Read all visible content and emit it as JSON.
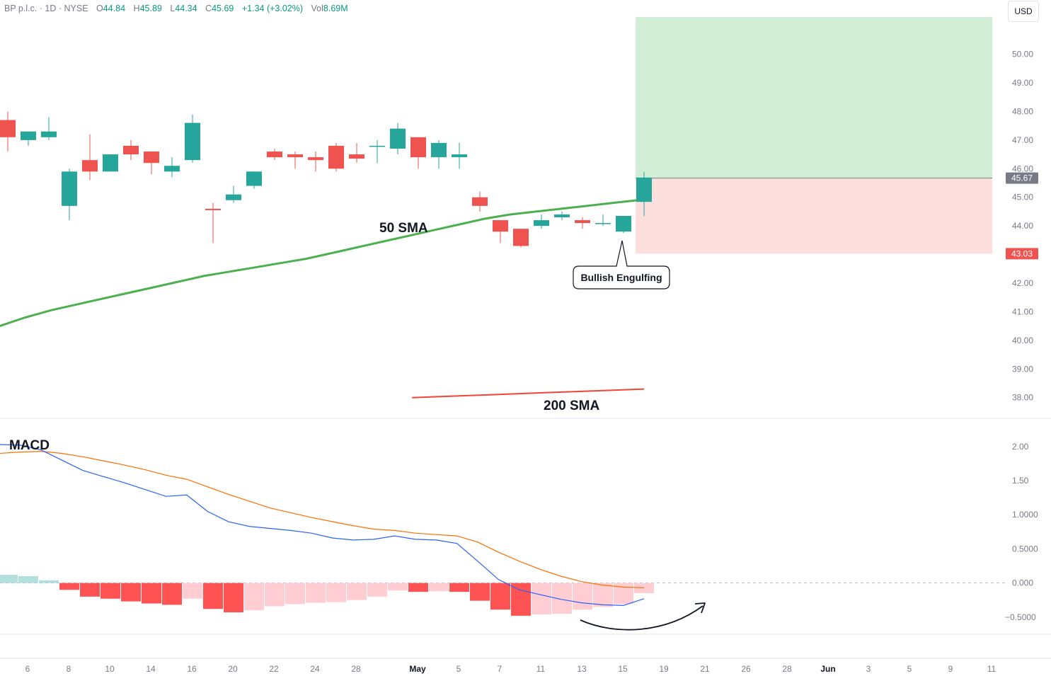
{
  "header": {
    "symbol": "BP p.l.c. · 1D · NYSE",
    "o_label": "O",
    "o_value": "44.84",
    "h_label": "H",
    "h_value": "45.89",
    "l_label": "L",
    "l_value": "44.34",
    "c_label": "C",
    "c_value": "45.69",
    "change": "+1.34 (+3.02%)",
    "vol_label": "Vol",
    "vol_value": "8.69M"
  },
  "currency": "USD",
  "colors": {
    "up": "#26a69a",
    "down": "#ef5350",
    "sma50": "#4caf50",
    "sma200": "#f44336",
    "macd": "#2962ff",
    "signal": "#ff6d00",
    "profit_zone": "#d3eed6",
    "loss_zone": "#fde0de"
  },
  "chart_data": [
    {
      "type": "candlestick",
      "y_ticks": [
        "50.00",
        "49.00",
        "48.00",
        "47.00",
        "46.00",
        "45.00",
        "44.00",
        "42.00",
        "41.00",
        "40.00",
        "39.00",
        "38.00"
      ],
      "ylim": [
        37.3,
        51.4
      ],
      "x_ticks": [
        "6",
        "8",
        "10",
        "14",
        "16",
        "20",
        "22",
        "24",
        "28",
        "May",
        "5",
        "7",
        "11",
        "13",
        "15",
        "19",
        "21",
        "26",
        "28",
        "Jun",
        "3",
        "5",
        "9",
        "11"
      ],
      "candles": [
        {
          "o": 47.7,
          "h": 48.0,
          "l": 46.6,
          "c": 47.1
        },
        {
          "o": 47.0,
          "h": 47.3,
          "l": 46.8,
          "c": 47.3
        },
        {
          "o": 47.1,
          "h": 47.8,
          "l": 47.0,
          "c": 47.3
        },
        {
          "o": 44.7,
          "h": 46.0,
          "l": 44.2,
          "c": 45.9
        },
        {
          "o": 46.3,
          "h": 47.2,
          "l": 45.6,
          "c": 45.9
        },
        {
          "o": 45.9,
          "h": 46.5,
          "l": 45.9,
          "c": 46.5
        },
        {
          "o": 46.8,
          "h": 47.0,
          "l": 46.3,
          "c": 46.5
        },
        {
          "o": 46.6,
          "h": 46.6,
          "l": 45.8,
          "c": 46.2
        },
        {
          "o": 45.9,
          "h": 46.4,
          "l": 45.7,
          "c": 46.1
        },
        {
          "o": 46.3,
          "h": 47.9,
          "l": 46.2,
          "c": 47.6
        },
        {
          "o": 44.6,
          "h": 44.8,
          "l": 43.4,
          "c": 44.55
        },
        {
          "o": 44.9,
          "h": 45.4,
          "l": 44.8,
          "c": 45.1
        },
        {
          "o": 45.4,
          "h": 45.9,
          "l": 45.3,
          "c": 45.9
        },
        {
          "o": 46.6,
          "h": 46.7,
          "l": 46.3,
          "c": 46.4
        },
        {
          "o": 46.5,
          "h": 46.6,
          "l": 46.0,
          "c": 46.4
        },
        {
          "o": 46.4,
          "h": 46.6,
          "l": 45.9,
          "c": 46.3
        },
        {
          "o": 46.8,
          "h": 46.9,
          "l": 45.9,
          "c": 46.0
        },
        {
          "o": 46.5,
          "h": 46.9,
          "l": 46.2,
          "c": 46.35
        },
        {
          "o": 46.8,
          "h": 47.0,
          "l": 46.2,
          "c": 46.8
        },
        {
          "o": 46.7,
          "h": 47.6,
          "l": 46.5,
          "c": 47.4
        },
        {
          "o": 47.1,
          "h": 47.1,
          "l": 46.0,
          "c": 46.4
        },
        {
          "o": 46.4,
          "h": 47.0,
          "l": 46.0,
          "c": 46.9
        },
        {
          "o": 46.4,
          "h": 46.9,
          "l": 46.0,
          "c": 46.5
        },
        {
          "o": 45.0,
          "h": 45.2,
          "l": 44.5,
          "c": 44.7
        },
        {
          "o": 44.2,
          "h": 44.2,
          "l": 43.4,
          "c": 43.8
        },
        {
          "o": 43.9,
          "h": 43.9,
          "l": 43.25,
          "c": 43.3
        },
        {
          "o": 44.0,
          "h": 44.4,
          "l": 43.9,
          "c": 44.2
        },
        {
          "o": 44.3,
          "h": 44.5,
          "l": 44.2,
          "c": 44.4
        },
        {
          "o": 44.2,
          "h": 44.3,
          "l": 43.9,
          "c": 44.1
        },
        {
          "o": 44.1,
          "h": 44.4,
          "l": 44.0,
          "c": 44.1
        },
        {
          "o": 43.8,
          "h": 44.35,
          "l": 43.75,
          "c": 44.35
        },
        {
          "o": 44.84,
          "h": 45.89,
          "l": 44.34,
          "c": 45.69
        }
      ],
      "sma50": [
        40.5,
        40.8,
        41.05,
        41.25,
        41.45,
        41.65,
        41.85,
        42.05,
        42.25,
        42.4,
        42.55,
        42.7,
        42.85,
        43.05,
        43.25,
        43.45,
        43.65,
        43.85,
        44.05,
        44.25,
        44.4,
        44.5,
        44.6,
        44.7,
        44.8,
        44.9
      ],
      "sma200": [
        38.0,
        38.1,
        38.2,
        38.3
      ],
      "annotations": {
        "sma50_label": "50 SMA",
        "sma200_label": "200 SMA",
        "pattern_label": "Bullish Engulfing"
      },
      "position": {
        "entry": 45.67,
        "target": 51.3,
        "stop": 43.03
      },
      "price_labels": {
        "current": "45.67",
        "stop": "43.03"
      }
    },
    {
      "type": "macd",
      "title": "MACD",
      "y_ticks": [
        "2.00",
        "1.50",
        "1.0000",
        "0.5000",
        "0.000",
        "−0.5000"
      ],
      "ylim": [
        -0.72,
        2.32
      ],
      "macd": [
        2.03,
        2.02,
        1.95,
        1.8,
        1.65,
        1.56,
        1.47,
        1.37,
        1.27,
        1.29,
        1.05,
        0.9,
        0.83,
        0.8,
        0.77,
        0.73,
        0.66,
        0.63,
        0.64,
        0.69,
        0.64,
        0.63,
        0.58,
        0.32,
        0.05,
        -0.1,
        -0.17,
        -0.24,
        -0.29,
        -0.32,
        -0.33,
        -0.23
      ],
      "signal": [
        1.9,
        1.92,
        1.93,
        1.9,
        1.85,
        1.79,
        1.73,
        1.66,
        1.58,
        1.52,
        1.41,
        1.3,
        1.2,
        1.1,
        1.03,
        0.96,
        0.9,
        0.84,
        0.79,
        0.77,
        0.73,
        0.71,
        0.69,
        0.6,
        0.45,
        0.32,
        0.2,
        0.1,
        0.02,
        -0.03,
        -0.06,
        -0.07
      ],
      "histogram": [
        0.12,
        0.1,
        0.04,
        -0.1,
        -0.2,
        -0.23,
        -0.27,
        -0.3,
        -0.32,
        -0.23,
        -0.38,
        -0.43,
        -0.4,
        -0.34,
        -0.31,
        -0.29,
        -0.28,
        -0.25,
        -0.2,
        -0.11,
        -0.13,
        -0.12,
        -0.13,
        -0.26,
        -0.39,
        -0.48,
        -0.46,
        -0.45,
        -0.39,
        -0.35,
        -0.31,
        -0.15
      ]
    }
  ]
}
